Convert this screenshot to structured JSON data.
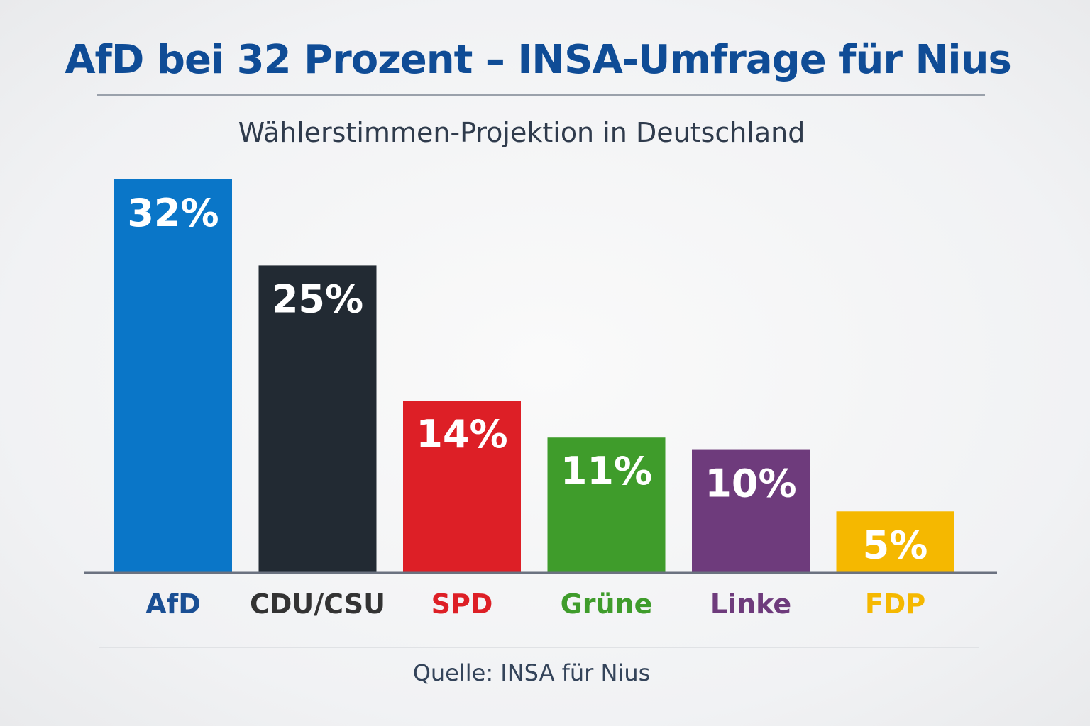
{
  "chart_data": {
    "type": "bar",
    "title": "AfD bei 32 Prozent – INSA-Umfrage für Nius",
    "subtitle": "Wählerstimmen-Projektion in Deutschland",
    "categories": [
      "AfD",
      "CDU/CSU",
      "SPD",
      "Grüne",
      "Linke",
      "FDP"
    ],
    "values": [
      32,
      25,
      14,
      11,
      10,
      5
    ],
    "data_labels": [
      "32%",
      "25%",
      "14%",
      "11%",
      "10%",
      "5%"
    ],
    "bar_colors": [
      "#0a76c8",
      "#222a33",
      "#dd1f26",
      "#3f9c2b",
      "#6e3b7c",
      "#f5b800"
    ],
    "label_colors": [
      "#1a4f94",
      "#333333",
      "#dd1f26",
      "#3f9c2b",
      "#6e3b7c",
      "#f5b800"
    ],
    "xlabel": "",
    "ylabel": "",
    "ylim": [
      0,
      32
    ],
    "grid": false,
    "source": "Quelle: INSA für Nius"
  }
}
